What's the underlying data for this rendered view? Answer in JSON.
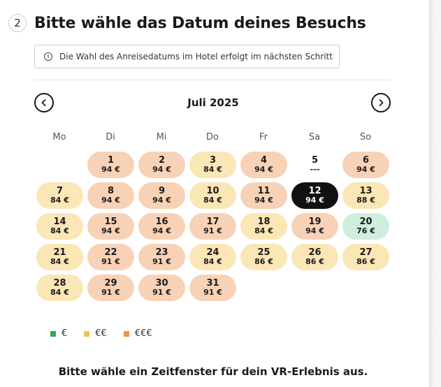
{
  "step": {
    "number": "2",
    "title": "Bitte wähle das Datum deines Besuchs"
  },
  "info": {
    "icon": "info-icon",
    "text": "Die Wahl des Anreisedatums im Hotel erfolgt im nächsten Schritt"
  },
  "calendar": {
    "month_label": "Juli 2025",
    "prev_icon": "chevron-left-icon",
    "next_icon": "chevron-right-icon",
    "weekdays": [
      "Mo",
      "Di",
      "Mi",
      "Do",
      "Fr",
      "Sa",
      "So"
    ],
    "start_offset": 1,
    "selected_day": 12,
    "days": [
      {
        "day": "1",
        "price": "94 €",
        "level": 3
      },
      {
        "day": "2",
        "price": "94 €",
        "level": 3
      },
      {
        "day": "3",
        "price": "84 €",
        "level": 2
      },
      {
        "day": "4",
        "price": "94 €",
        "level": 3
      },
      {
        "day": "5",
        "price": "---",
        "level": 0
      },
      {
        "day": "6",
        "price": "94 €",
        "level": 3
      },
      {
        "day": "7",
        "price": "84 €",
        "level": 2
      },
      {
        "day": "8",
        "price": "94 €",
        "level": 3
      },
      {
        "day": "9",
        "price": "94 €",
        "level": 3
      },
      {
        "day": "10",
        "price": "84 €",
        "level": 2
      },
      {
        "day": "11",
        "price": "94 €",
        "level": 3
      },
      {
        "day": "12",
        "price": "94 €",
        "level": 3
      },
      {
        "day": "13",
        "price": "88 €",
        "level": 2
      },
      {
        "day": "14",
        "price": "84 €",
        "level": 2
      },
      {
        "day": "15",
        "price": "94 €",
        "level": 3
      },
      {
        "day": "16",
        "price": "94 €",
        "level": 3
      },
      {
        "day": "17",
        "price": "91 €",
        "level": 3
      },
      {
        "day": "18",
        "price": "84 €",
        "level": 2
      },
      {
        "day": "19",
        "price": "94 €",
        "level": 3
      },
      {
        "day": "20",
        "price": "76 €",
        "level": 1
      },
      {
        "day": "21",
        "price": "84 €",
        "level": 2
      },
      {
        "day": "22",
        "price": "91 €",
        "level": 3
      },
      {
        "day": "23",
        "price": "91 €",
        "level": 3
      },
      {
        "day": "24",
        "price": "84 €",
        "level": 2
      },
      {
        "day": "25",
        "price": "86 €",
        "level": 2
      },
      {
        "day": "26",
        "price": "86 €",
        "level": 2
      },
      {
        "day": "27",
        "price": "86 €",
        "level": 2
      },
      {
        "day": "28",
        "price": "84 €",
        "level": 2
      },
      {
        "day": "29",
        "price": "91 €",
        "level": 3
      },
      {
        "day": "30",
        "price": "91 €",
        "level": 3
      },
      {
        "day": "31",
        "price": "91 €",
        "level": 3
      }
    ]
  },
  "legend": [
    {
      "label": "€",
      "color": "#34a853"
    },
    {
      "label": "€€",
      "color": "#f0c64a"
    },
    {
      "label": "€€€",
      "color": "#ee9447"
    }
  ],
  "timeslot_heading": "Bitte wähle ein Zeitfenster für dein VR-Erlebnis aus."
}
